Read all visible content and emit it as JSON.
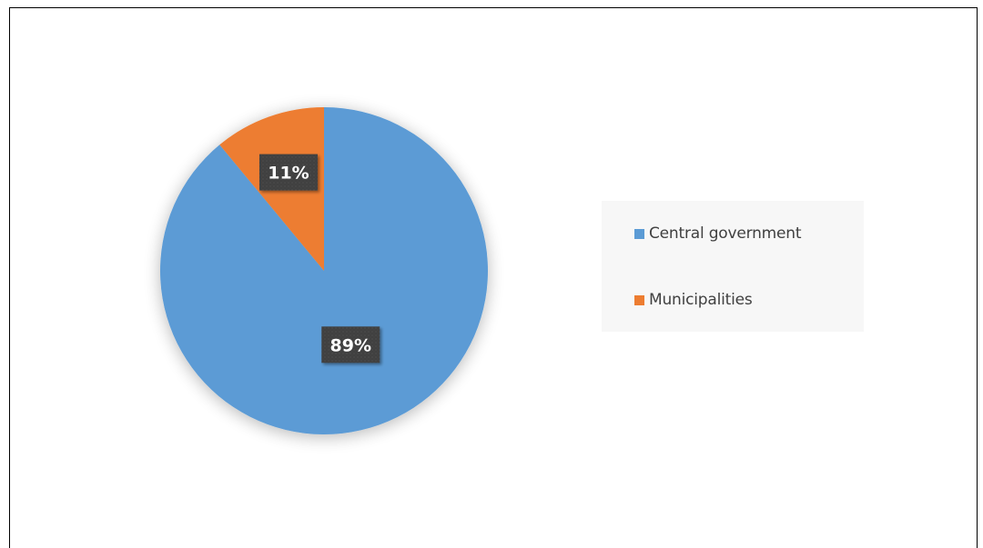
{
  "caption": {
    "text": ""
  },
  "chart_data": {
    "type": "pie",
    "title": "",
    "slices": [
      {
        "label": "Central government",
        "value": 89,
        "display": "89%",
        "color": "#5b9bd5"
      },
      {
        "label": "Municipalities",
        "value": 11,
        "display": "11%",
        "color": "#ed7d31"
      }
    ],
    "start_angle_deg": 0,
    "direction": "clockwise",
    "legend_position": "right",
    "data_label_style": {
      "background": "#404040",
      "text_color": "#ffffff"
    }
  }
}
